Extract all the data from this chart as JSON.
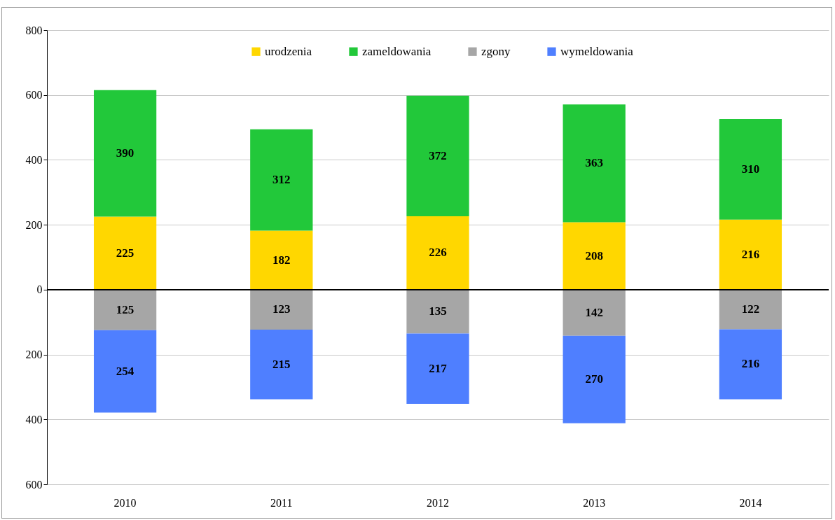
{
  "chart_data": {
    "type": "bar",
    "stacked": true,
    "categories": [
      "2010",
      "2011",
      "2012",
      "2013",
      "2014"
    ],
    "series": [
      {
        "name": "urodzenia",
        "color": "#ffd700",
        "values": [
          225,
          182,
          226,
          208,
          216
        ]
      },
      {
        "name": "zameldowania",
        "color": "#22c83a",
        "values": [
          390,
          312,
          372,
          363,
          310
        ]
      },
      {
        "name": "zgony",
        "color": "#a6a6a6",
        "values": [
          -125,
          -123,
          -135,
          -142,
          -122
        ]
      },
      {
        "name": "wymeldowania",
        "color": "#4f7fff",
        "values": [
          -254,
          -215,
          -217,
          -270,
          -216
        ]
      }
    ],
    "value_labels": [
      [
        "225",
        "182",
        "226",
        "208",
        "216"
      ],
      [
        "390",
        "312",
        "372",
        "363",
        "310"
      ],
      [
        "125",
        "123",
        "135",
        "142",
        "122"
      ],
      [
        "254",
        "215",
        "217",
        "270",
        "216"
      ]
    ],
    "ylim": [
      -600,
      800
    ],
    "yticks": [
      {
        "value": -600,
        "label": "600"
      },
      {
        "value": -400,
        "label": "400"
      },
      {
        "value": -200,
        "label": "200"
      },
      0,
      200,
      400,
      600,
      800
    ],
    "grid": "y",
    "legend": "top"
  }
}
